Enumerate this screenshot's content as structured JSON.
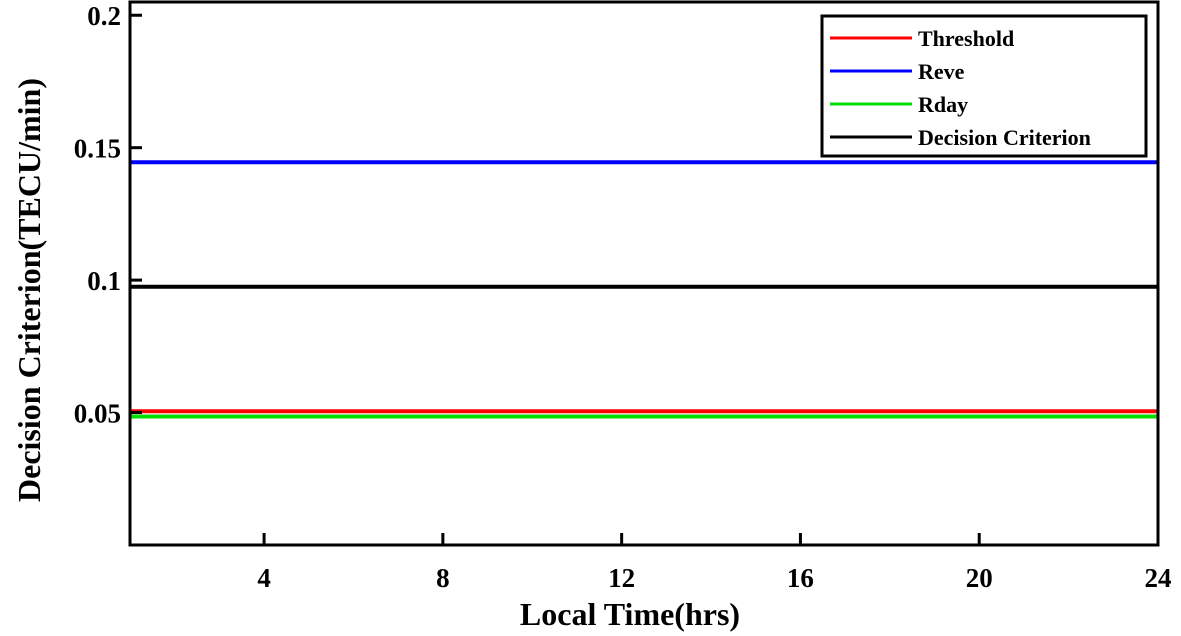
{
  "chart_data": {
    "type": "line",
    "title": "",
    "xlabel": "Local Time(hrs)",
    "ylabel": "Decision Criterion(TECU/min)",
    "xlim": [
      1,
      24
    ],
    "ylim": [
      0,
      0.205
    ],
    "xticks": [
      4,
      8,
      12,
      16,
      20,
      24
    ],
    "xtick_labels": [
      "4",
      "8",
      "12",
      "16",
      "20",
      "24"
    ],
    "yticks": [
      0.05,
      0.1,
      0.15,
      0.2
    ],
    "ytick_labels": [
      "0.05",
      "0.1",
      "0.15",
      "0.2"
    ],
    "grid": false,
    "legend_position": "top-right",
    "series": [
      {
        "name": "Threshold",
        "color": "#ff0000",
        "x": [
          1,
          24
        ],
        "y": [
          0.0505,
          0.0505
        ]
      },
      {
        "name": "Reve",
        "color": "#0000ff",
        "x": [
          1,
          24
        ],
        "y": [
          0.1445,
          0.1445
        ]
      },
      {
        "name": "Rday",
        "color": "#00dd00",
        "x": [
          1,
          24
        ],
        "y": [
          0.0485,
          0.0485
        ]
      },
      {
        "name": "Decision Criterion",
        "color": "#000000",
        "x": [
          1,
          24
        ],
        "y": [
          0.0975,
          0.0975
        ]
      }
    ]
  }
}
